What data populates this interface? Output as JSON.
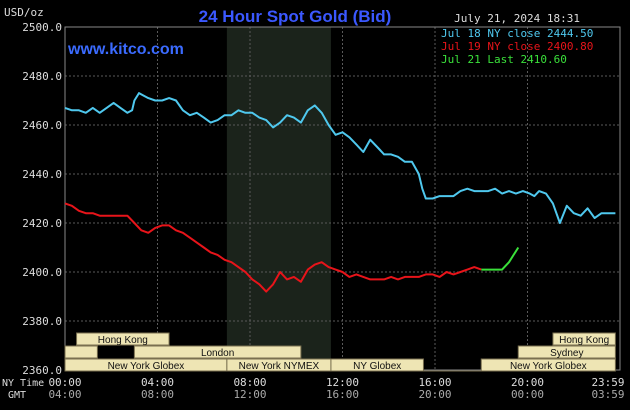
{
  "header": {
    "title": "24 Hour Spot Gold (Bid)",
    "units": "USD/oz",
    "watermark": "www.kitco.com",
    "timestamp": "July 21, 2024 18:31"
  },
  "legend": [
    {
      "label": "Jul 18 NY close 2444.50",
      "color": "#4fc8ee"
    },
    {
      "label": "Jul 19 NY close 2400.80",
      "color": "#e8141a"
    },
    {
      "label": "Jul 21 Last 2410.60",
      "color": "#3ae03a"
    }
  ],
  "x_axis": {
    "ny_label": "NY Time",
    "gmt_label": "GMT",
    "ny_ticks": [
      "00:00",
      "04:00",
      "08:00",
      "12:00",
      "16:00",
      "20:00",
      "23:59"
    ],
    "gmt_ticks": [
      "04:00",
      "08:00",
      "12:00",
      "16:00",
      "20:00",
      "00:00",
      "03:59"
    ]
  },
  "sessions": {
    "row1": [
      "Hong Kong",
      "Hong Kong"
    ],
    "row2": [
      "London",
      "Sydney"
    ],
    "row3": [
      "New York Globex",
      "New York NYMEX",
      "NY Globex",
      "New York Globex"
    ]
  },
  "colors": {
    "background": "#000000",
    "plot_bg": "#000000",
    "shade": "#1b231b",
    "grid": "#5a5a5a",
    "axis_text": "#dddddd",
    "title": "#3b58ff",
    "watermark": "#3b6bff",
    "session_fill": "#eee5b4",
    "session_text": "#111111",
    "session_border": "#7a7050"
  },
  "chart_data": {
    "type": "line",
    "ylim": [
      2360,
      2500
    ],
    "yticks": [
      2360.0,
      2380.0,
      2400.0,
      2420.0,
      2440.0,
      2460.0,
      2480.0,
      2500.0
    ],
    "xlim": [
      0,
      24
    ],
    "ny_trading_shade_hours": [
      7.0,
      11.5
    ],
    "grid": true,
    "series": [
      {
        "name": "Jul 18 NY close 2444.50",
        "color": "#4fc8ee",
        "x": [
          0,
          0.3,
          0.6,
          0.9,
          1.2,
          1.5,
          1.8,
          2.1,
          2.4,
          2.7,
          2.9,
          3.0,
          3.2,
          3.4,
          3.6,
          3.9,
          4.2,
          4.5,
          4.8,
          5.1,
          5.4,
          5.7,
          6.0,
          6.3,
          6.6,
          6.9,
          7.2,
          7.5,
          7.8,
          8.1,
          8.4,
          8.7,
          9.0,
          9.3,
          9.6,
          9.9,
          10.2,
          10.5,
          10.8,
          11.1,
          11.4,
          11.7,
          12.0,
          12.3,
          12.6,
          12.9,
          13.2,
          13.5,
          13.8,
          14.1,
          14.4,
          14.7,
          15.0,
          15.3,
          15.45,
          15.6,
          15.9,
          16.2,
          16.5,
          16.8,
          17.1,
          17.4,
          17.7,
          18.0,
          18.3,
          18.6,
          18.9,
          19.2,
          19.5,
          19.8,
          20.1,
          20.3,
          20.5,
          20.8,
          21.1,
          21.4,
          21.7,
          22.0,
          22.3,
          22.6,
          22.9,
          23.2,
          23.5,
          23.8
        ],
        "values": [
          2467,
          2466,
          2466,
          2465,
          2467,
          2465,
          2467,
          2469,
          2467,
          2465,
          2466,
          2470,
          2473,
          2472,
          2471,
          2470,
          2470,
          2471,
          2470,
          2466,
          2464,
          2465,
          2463,
          2461,
          2462,
          2464,
          2464,
          2466,
          2465,
          2465,
          2463,
          2462,
          2459,
          2461,
          2464,
          2463,
          2461,
          2466,
          2468,
          2465,
          2460,
          2456,
          2457,
          2455,
          2452,
          2449,
          2454,
          2451,
          2448,
          2448,
          2447,
          2445,
          2445,
          2440,
          2434,
          2430,
          2430,
          2431,
          2431,
          2431,
          2433,
          2434,
          2433,
          2433,
          2433,
          2434,
          2432,
          2433,
          2432,
          2433,
          2432,
          2431,
          2433,
          2432,
          2428,
          2420,
          2427,
          2424,
          2423,
          2426,
          2422,
          2424,
          2424,
          2424
        ],
        "y_offset_comment": ""
      },
      {
        "name": "Jul 19 NY close 2400.80",
        "color": "#e8141a",
        "x": [
          0,
          0.3,
          0.6,
          0.9,
          1.2,
          1.5,
          1.8,
          2.1,
          2.4,
          2.7,
          3.0,
          3.3,
          3.6,
          3.9,
          4.2,
          4.5,
          4.8,
          5.1,
          5.4,
          5.7,
          6.0,
          6.3,
          6.6,
          6.9,
          7.2,
          7.5,
          7.8,
          8.1,
          8.4,
          8.7,
          9.0,
          9.3,
          9.6,
          9.9,
          10.2,
          10.5,
          10.8,
          11.1,
          11.4,
          11.7,
          12.0,
          12.3,
          12.6,
          12.9,
          13.2,
          13.5,
          13.8,
          14.1,
          14.4,
          14.7,
          15.0,
          15.3,
          15.6,
          15.9,
          16.2,
          16.5,
          16.8,
          17.1,
          17.4,
          17.7,
          18.0
        ],
        "values": [
          2428,
          2427,
          2425,
          2424,
          2424,
          2423,
          2423,
          2423,
          2423,
          2423,
          2420,
          2417,
          2416,
          2418,
          2419,
          2419,
          2417,
          2416,
          2414,
          2412,
          2410,
          2408,
          2407,
          2405,
          2404,
          2402,
          2400,
          2397,
          2395,
          2392,
          2395,
          2400,
          2397,
          2398,
          2396,
          2401,
          2403,
          2404,
          2402,
          2401,
          2400,
          2398,
          2399,
          2398,
          2397,
          2397,
          2397,
          2398,
          2397,
          2398,
          2398,
          2398,
          2399,
          2399,
          2398,
          2400,
          2399,
          2400,
          2401,
          2402,
          2401
        ],
        "y_offset_comment": ""
      },
      {
        "name": "Jul 21 Last 2410.60",
        "color": "#3ae03a",
        "x": [
          18.0,
          18.3,
          18.6,
          18.9,
          19.0,
          19.2,
          19.4,
          19.6
        ],
        "values": [
          2401,
          2401,
          2401,
          2401,
          2402,
          2404,
          2407,
          2410
        ],
        "y_offset_comment": ""
      }
    ]
  }
}
